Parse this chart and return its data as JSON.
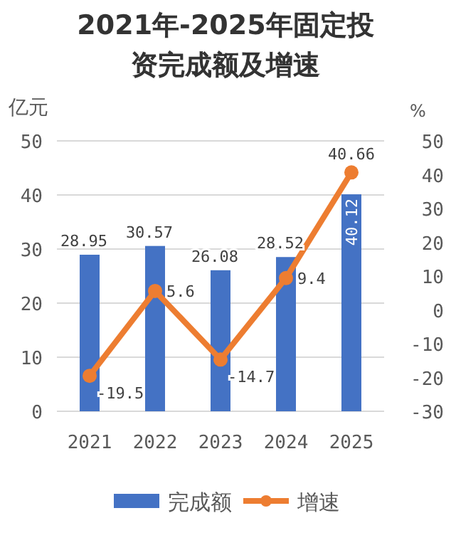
{
  "chart_data": {
    "type": "bar",
    "title": "2021年-2025年固定投资完成额及增速",
    "ylabel": "亿元",
    "y2label": "%",
    "categories": [
      "2021",
      "2022",
      "2023",
      "2024",
      "2025"
    ],
    "series": [
      {
        "name": "完成额",
        "color": "#4472c4",
        "values": [
          28.95,
          30.57,
          26.08,
          28.52,
          40.12
        ]
      },
      {
        "name": "增速",
        "type": "line",
        "axis": "y2",
        "color": "#ed7d31",
        "values": [
          -19.5,
          5.6,
          -14.7,
          9.4,
          40.66
        ]
      }
    ],
    "ylim": [
      0,
      50
    ],
    "yticks": [
      0,
      10,
      20,
      30,
      40,
      50
    ],
    "y2lim": [
      -30,
      50
    ],
    "y2ticks": [
      -30,
      -20,
      -10,
      0,
      10,
      20,
      30,
      40,
      50
    ],
    "grid": "y",
    "legend": "bottom",
    "data_labels": true,
    "marker": "circle"
  }
}
